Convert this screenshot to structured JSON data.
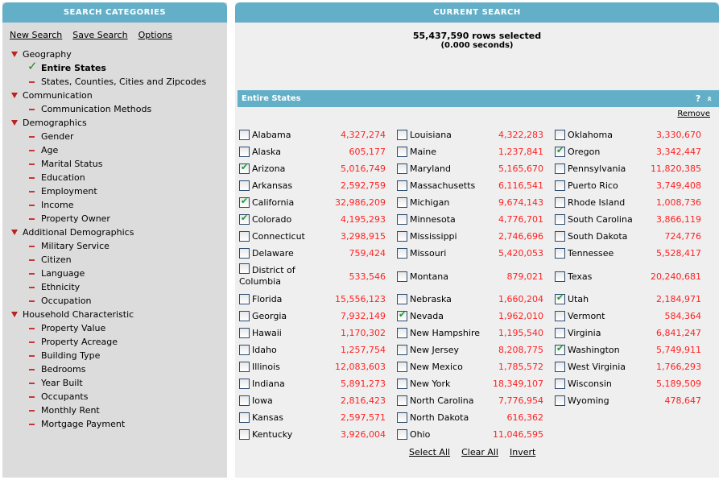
{
  "left": {
    "title": "SEARCH CATEGORIES",
    "links": [
      "New Search",
      "Save Search",
      "Options"
    ],
    "tree": [
      {
        "label": "Geography",
        "items": [
          {
            "label": "Entire States",
            "selected": true
          },
          {
            "label": "States, Counties, Cities and Zipcodes"
          }
        ]
      },
      {
        "label": "Communication",
        "items": [
          {
            "label": "Communication Methods"
          }
        ]
      },
      {
        "label": "Demographics",
        "items": [
          {
            "label": "Gender"
          },
          {
            "label": "Age"
          },
          {
            "label": "Marital Status"
          },
          {
            "label": "Education"
          },
          {
            "label": "Employment"
          },
          {
            "label": "Income"
          },
          {
            "label": "Property Owner"
          }
        ]
      },
      {
        "label": "Additional Demographics",
        "items": [
          {
            "label": "Military Service"
          },
          {
            "label": "Citizen"
          },
          {
            "label": "Language"
          },
          {
            "label": "Ethnicity"
          },
          {
            "label": "Occupation"
          }
        ]
      },
      {
        "label": "Household Characteristic",
        "items": [
          {
            "label": "Property Value"
          },
          {
            "label": "Property Acreage"
          },
          {
            "label": "Building Type"
          },
          {
            "label": "Bedrooms"
          },
          {
            "label": "Year Built"
          },
          {
            "label": "Occupants"
          },
          {
            "label": "Monthly Rent"
          },
          {
            "label": "Mortgage Payment"
          }
        ]
      }
    ]
  },
  "right": {
    "title": "CURRENT SEARCH",
    "rows_selected": "55,437,590 rows selected",
    "seconds": "(0.000 seconds)",
    "section_title": "Entire States",
    "help": "?",
    "collapse": "«",
    "remove": "Remove",
    "columns": [
      [
        [
          "Alabama",
          "4,327,274",
          false
        ],
        [
          "Alaska",
          "605,177",
          false
        ],
        [
          "Arizona",
          "5,016,749",
          true
        ],
        [
          "Arkansas",
          "2,592,759",
          false
        ],
        [
          "California",
          "32,986,209",
          true
        ],
        [
          "Colorado",
          "4,195,293",
          true
        ],
        [
          "Connecticut",
          "3,298,915",
          false
        ],
        [
          "Delaware",
          "759,424",
          false
        ],
        [
          "District of Columbia",
          "533,546",
          false
        ],
        [
          "Florida",
          "15,556,123",
          false
        ],
        [
          "Georgia",
          "7,932,149",
          false
        ],
        [
          "Hawaii",
          "1,170,302",
          false
        ],
        [
          "Idaho",
          "1,257,754",
          false
        ],
        [
          "Illinois",
          "12,083,603",
          false
        ],
        [
          "Indiana",
          "5,891,273",
          false
        ],
        [
          "Iowa",
          "2,816,423",
          false
        ],
        [
          "Kansas",
          "2,597,571",
          false
        ],
        [
          "Kentucky",
          "3,926,004",
          false
        ]
      ],
      [
        [
          "Louisiana",
          "4,322,283",
          false
        ],
        [
          "Maine",
          "1,237,841",
          false
        ],
        [
          "Maryland",
          "5,165,670",
          false
        ],
        [
          "Massachusetts",
          "6,116,541",
          false
        ],
        [
          "Michigan",
          "9,674,143",
          false
        ],
        [
          "Minnesota",
          "4,776,701",
          false
        ],
        [
          "Mississippi",
          "2,746,696",
          false
        ],
        [
          "Missouri",
          "5,420,053",
          false
        ],
        [
          "Montana",
          "879,021",
          false
        ],
        [
          "Nebraska",
          "1,660,204",
          false
        ],
        [
          "Nevada",
          "1,962,010",
          true
        ],
        [
          "New Hampshire",
          "1,195,540",
          false
        ],
        [
          "New Jersey",
          "8,208,775",
          false
        ],
        [
          "New Mexico",
          "1,785,572",
          false
        ],
        [
          "New York",
          "18,349,107",
          false
        ],
        [
          "North Carolina",
          "7,776,954",
          false
        ],
        [
          "North Dakota",
          "616,362",
          false
        ],
        [
          "Ohio",
          "11,046,595",
          false
        ]
      ],
      [
        [
          "Oklahoma",
          "3,330,670",
          false
        ],
        [
          "Oregon",
          "3,342,447",
          true
        ],
        [
          "Pennsylvania",
          "11,820,385",
          false
        ],
        [
          "Puerto Rico",
          "3,749,408",
          false
        ],
        [
          "Rhode Island",
          "1,008,736",
          false
        ],
        [
          "South Carolina",
          "3,866,119",
          false
        ],
        [
          "South Dakota",
          "724,776",
          false
        ],
        [
          "Tennessee",
          "5,528,417",
          false
        ],
        [
          "Texas",
          "20,240,681",
          false
        ],
        [
          "Utah",
          "2,184,971",
          true
        ],
        [
          "Vermont",
          "584,364",
          false
        ],
        [
          "Virginia",
          "6,841,247",
          false
        ],
        [
          "Washington",
          "5,749,911",
          true
        ],
        [
          "West Virginia",
          "1,766,293",
          false
        ],
        [
          "Wisconsin",
          "5,189,509",
          false
        ],
        [
          "Wyoming",
          "478,647",
          false
        ]
      ]
    ],
    "actions": [
      "Select All",
      "Clear All",
      "Invert"
    ]
  }
}
